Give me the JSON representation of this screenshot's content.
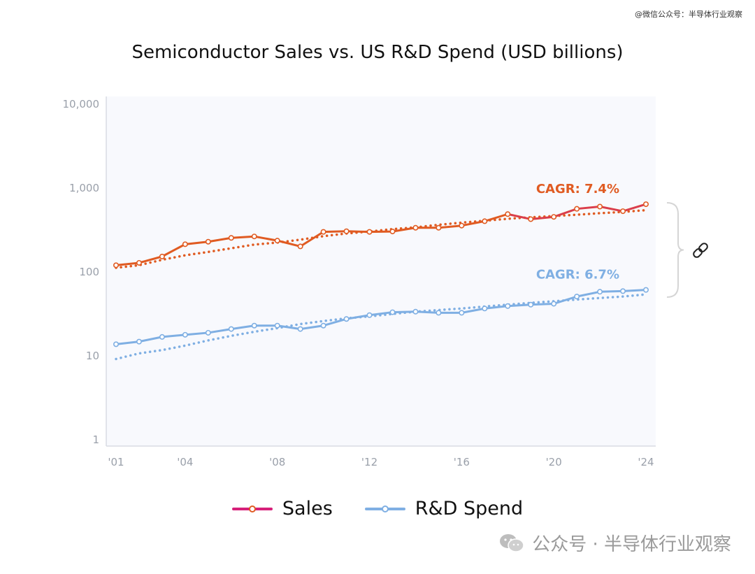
{
  "watermark_top": "@微信公众号：半导体行业观察",
  "watermark_bottom": "公众号 · 半导体行业观察",
  "colors": {
    "sales": "#e05b22",
    "sales_legend": "#d6207a",
    "rd": "#7fafe3",
    "plot_bg": "#f8f9fd",
    "axis_text": "#9aa0aa"
  },
  "chart_data": {
    "type": "line",
    "title": "Semiconductor Sales vs. US R&D Spend (USD billions)",
    "y_scale": "log",
    "ylim": [
      1,
      10000
    ],
    "y_ticks": [
      1,
      10,
      100,
      1000,
      10000
    ],
    "y_tick_labels": [
      "1",
      "10",
      "100",
      "1,000",
      "10,000"
    ],
    "x_ticks": [
      2001,
      2004,
      2008,
      2012,
      2016,
      2020,
      2024
    ],
    "x_tick_labels": [
      "'01",
      "'04",
      "'08",
      "'12",
      "'16",
      "'20",
      "'24"
    ],
    "x": [
      2001,
      2002,
      2003,
      2004,
      2005,
      2006,
      2007,
      2008,
      2009,
      2010,
      2011,
      2012,
      2013,
      2014,
      2015,
      2016,
      2017,
      2018,
      2019,
      2020,
      2021,
      2022,
      2023,
      2024
    ],
    "series": [
      {
        "name": "Sales",
        "values": [
          118,
          126,
          150,
          210,
          225,
          250,
          260,
          232,
          198,
          295,
          300,
          295,
          298,
          330,
          330,
          350,
          395,
          480,
          418,
          445,
          555,
          590,
          520,
          630
        ],
        "trend": [
          110,
          118,
          137,
          155,
          170,
          188,
          208,
          220,
          238,
          262,
          282,
          298,
          318,
          334,
          358,
          380,
          400,
          422,
          440,
          455,
          472,
          492,
          510,
          535
        ],
        "annotation": "CAGR: 7.4%"
      },
      {
        "name": "R&D Spend",
        "values": [
          13.5,
          14.5,
          16.5,
          17.5,
          18.5,
          20.5,
          22.5,
          22.5,
          20.5,
          22.5,
          27,
          30,
          32.5,
          33,
          32,
          32,
          36,
          38.5,
          40,
          41,
          50,
          57,
          58,
          60
        ],
        "trend": [
          9,
          10.5,
          11.5,
          13,
          15,
          17,
          19,
          21,
          23.5,
          25.5,
          27.5,
          29,
          31,
          33,
          34.5,
          36,
          38,
          40,
          42,
          44,
          46,
          48,
          50,
          53
        ],
        "annotation": "CAGR: 6.7%"
      }
    ],
    "legend_position": "bottom",
    "grid": false
  }
}
